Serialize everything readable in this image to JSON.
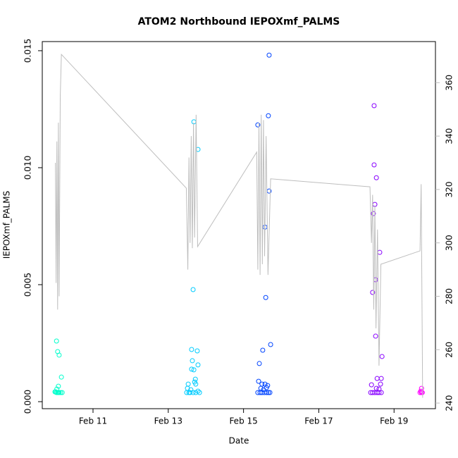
{
  "chart_data": {
    "type": "scatter",
    "title": "ATOM2 Northbound IEPOXmf_PALMS",
    "x_label": "Date",
    "y_label": "IEPOXmf_PALMS",
    "xlim": [
      9.652,
      20.1
    ],
    "xticks": [
      {
        "value": 11,
        "label": "Feb 11"
      },
      {
        "value": 13,
        "label": "Feb 13"
      },
      {
        "value": 15,
        "label": "Feb 15"
      },
      {
        "value": 17,
        "label": "Feb 17"
      },
      {
        "value": 19,
        "label": "Feb 19"
      }
    ],
    "ylim": [
      -0.0003,
      0.01539
    ],
    "yticks": [
      {
        "value": 0,
        "label": "0.000"
      },
      0.005,
      {
        "value": 0.01,
        "label": "0.010"
      },
      0.015
    ],
    "y2lim": [
      237.9,
      375.4
    ],
    "y2ticks": [
      240,
      260,
      280,
      300,
      320,
      340,
      360
    ],
    "y2_color": "#bebebe",
    "series": [
      {
        "color": "#00ffcc",
        "x": [
          10.03,
          10.06,
          10.1,
          10.16,
          10.08,
          10.04,
          10.01,
          10.03,
          10.06,
          10.1,
          10.14,
          10.18,
          9.99,
          10.08
        ],
        "values": [
          0.00259,
          0.00214,
          0.00199,
          0.00105,
          0.00066,
          0.00054,
          0.00042,
          0.00039,
          0.00039,
          0.00039,
          0.00039,
          0.00039,
          0.00042,
          0.00039
        ]
      },
      {
        "color": "#00ccff",
        "x": [
          13.68,
          13.79,
          13.66,
          13.62,
          13.77,
          13.64,
          13.62,
          13.68,
          13.79,
          13.72,
          13.7,
          13.53,
          13.73,
          13.51,
          13.6,
          13.79,
          13.49,
          13.55,
          13.58,
          13.66,
          13.73,
          13.83
        ],
        "values": [
          0.01196,
          0.01078,
          0.00479,
          0.00223,
          0.00217,
          0.00175,
          0.00139,
          0.00136,
          0.00157,
          0.00096,
          0.00084,
          0.00075,
          0.00075,
          0.00057,
          0.00051,
          0.00045,
          0.00039,
          0.00039,
          0.00039,
          0.00039,
          0.00039,
          0.00039
        ]
      },
      {
        "color": "#0044ff",
        "x": [
          15.38,
          15.68,
          15.66,
          15.68,
          15.57,
          15.59,
          15.72,
          15.51,
          15.42,
          15.4,
          15.49,
          15.57,
          15.64,
          15.46,
          15.53,
          15.61,
          15.38,
          15.44,
          15.49,
          15.55,
          15.61,
          15.66,
          15.7
        ],
        "values": [
          0.01183,
          0.01481,
          0.01222,
          0.009,
          0.00746,
          0.00445,
          0.00244,
          0.0022,
          0.00163,
          0.00087,
          0.00075,
          0.00075,
          0.00069,
          0.00057,
          0.00051,
          0.0006,
          0.00039,
          0.00039,
          0.00039,
          0.00039,
          0.00039,
          0.00039,
          0.00039
        ]
      },
      {
        "color": "#8800ff",
        "x": [
          18.47,
          18.47,
          18.53,
          18.49,
          18.45,
          18.62,
          18.51,
          18.43,
          18.51,
          18.68,
          18.55,
          18.66,
          18.4,
          18.64,
          18.53,
          18.6,
          18.38,
          18.43,
          18.49,
          18.55,
          18.6,
          18.66
        ],
        "values": [
          0.01265,
          0.01012,
          0.00957,
          0.00843,
          0.00804,
          0.00638,
          0.00521,
          0.00467,
          0.0028,
          0.00193,
          0.00099,
          0.00099,
          0.00072,
          0.00075,
          0.00057,
          0.00054,
          0.00039,
          0.00039,
          0.00039,
          0.00039,
          0.00039,
          0.00039
        ]
      },
      {
        "color": "#ff00ff",
        "x": [
          19.73,
          19.71,
          19.75,
          19.69,
          19.73
        ],
        "values": [
          0.00057,
          0.00045,
          0.00039,
          0.00039,
          0.00039
        ]
      },
      {
        "type": "line",
        "axis": "y2",
        "color": "#bebebe",
        "x": [
          10.0,
          10.02,
          10.04,
          10.06,
          10.08,
          10.1,
          10.13,
          10.16,
          13.48,
          13.52,
          13.55,
          13.58,
          13.61,
          13.64,
          13.67,
          13.7,
          13.74,
          13.78,
          15.35,
          15.38,
          15.41,
          15.44,
          15.47,
          15.5,
          15.53,
          15.56,
          15.6,
          15.65,
          15.72,
          18.36,
          18.4,
          18.43,
          18.46,
          18.49,
          18.52,
          18.56,
          18.6,
          18.65,
          19.69,
          19.72,
          19.76
        ],
        "values": [
          330,
          285,
          338,
          275,
          345,
          280,
          355,
          370.6,
          320.5,
          290,
          332,
          300,
          340,
          298,
          345,
          302,
          348,
          298.6,
          334,
          290,
          345,
          288,
          348,
          292,
          346,
          295,
          340,
          288,
          324,
          321,
          300,
          318,
          275,
          314,
          268,
          305,
          254,
          292,
          297,
          322,
          242
        ]
      }
    ]
  }
}
